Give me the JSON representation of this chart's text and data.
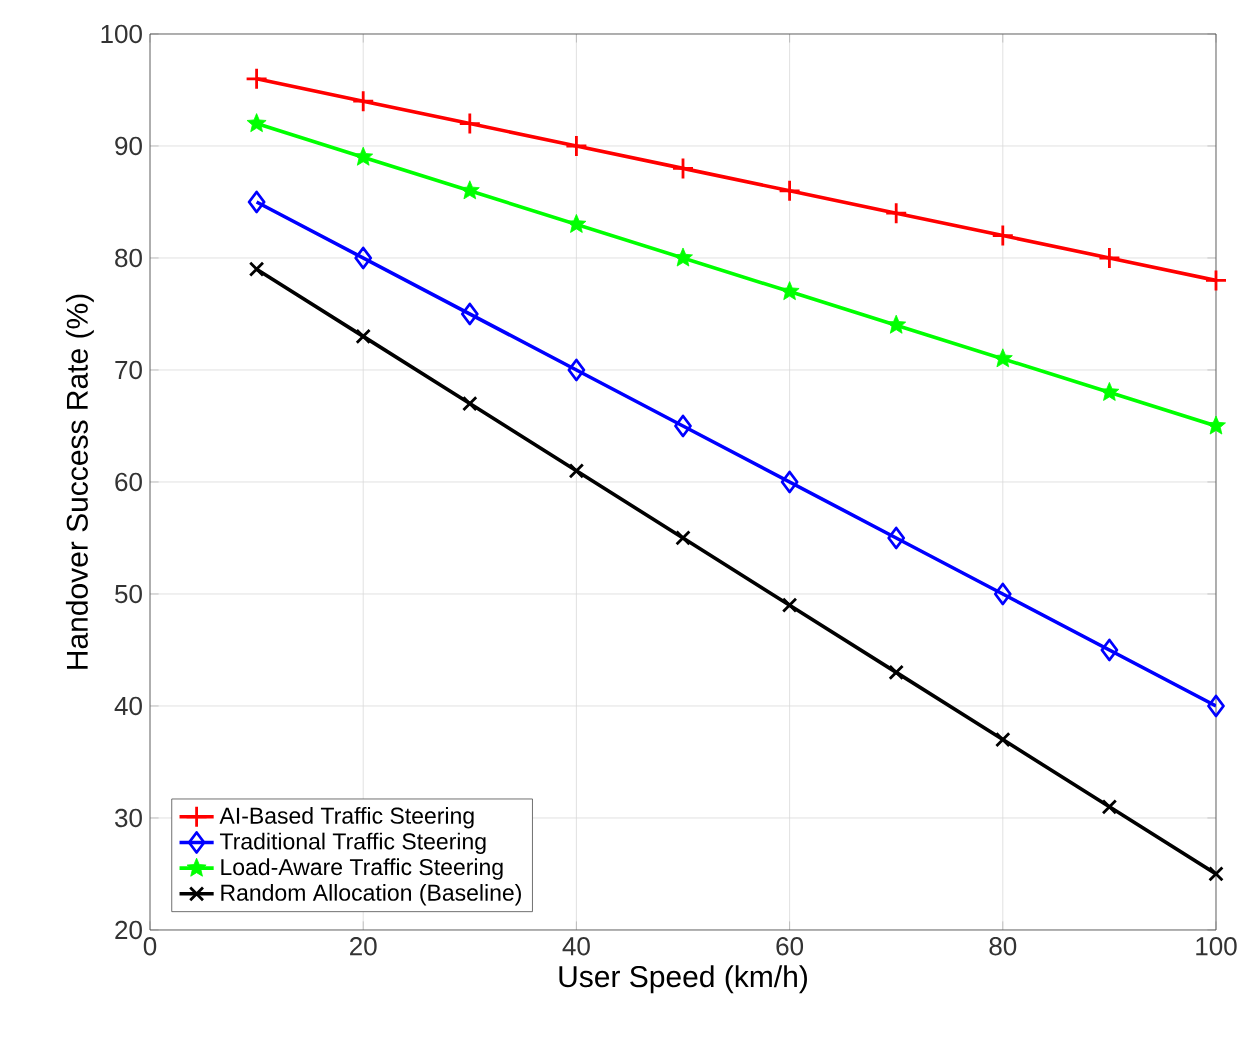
{
  "chart_data": {
    "type": "line",
    "xlabel": "User Speed (km/h)",
    "ylabel": "Handover Success Rate (%)",
    "x": [
      10,
      20,
      30,
      40,
      50,
      60,
      70,
      80,
      90,
      100
    ],
    "series": [
      {
        "name": "AI-Based Traffic Steering",
        "color": "#ff0000",
        "marker": "plus",
        "values": [
          96,
          94,
          92,
          90,
          88,
          86,
          84,
          82,
          80,
          78
        ]
      },
      {
        "name": "Traditional Traffic Steering",
        "color": "#0000ff",
        "marker": "diamond",
        "values": [
          85,
          80,
          75,
          70,
          65,
          60,
          55,
          50,
          45,
          40
        ]
      },
      {
        "name": "Load-Aware Traffic Steering",
        "color": "#00ff00",
        "marker": "star",
        "values": [
          92,
          89,
          86,
          83,
          80,
          77,
          74,
          71,
          68,
          65
        ]
      },
      {
        "name": "Random Allocation (Baseline)",
        "color": "#000000",
        "marker": "cross",
        "values": [
          79,
          73,
          67,
          61,
          55,
          49,
          43,
          37,
          31,
          25
        ]
      }
    ],
    "xlim": [
      0,
      100
    ],
    "xticks": [
      0,
      20,
      40,
      60,
      80,
      100
    ],
    "ylim": [
      20,
      100
    ],
    "yticks": [
      20,
      30,
      40,
      50,
      60,
      70,
      80,
      90,
      100
    ],
    "grid": true,
    "legend": "bottom left",
    "line_style": "solid"
  }
}
